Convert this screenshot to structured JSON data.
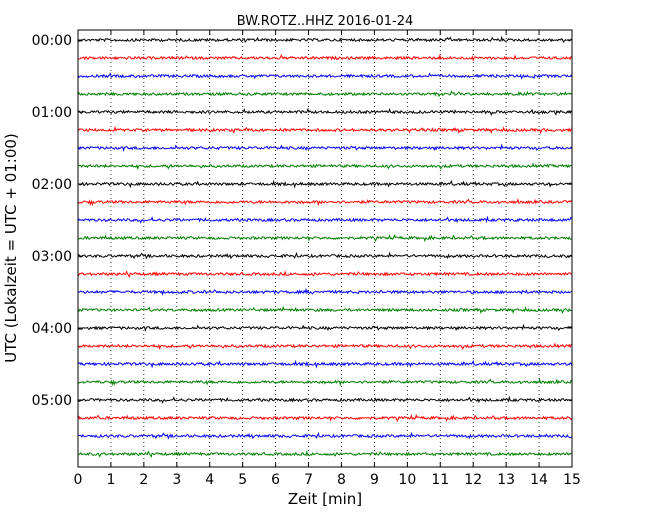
{
  "chart_data": {
    "type": "line",
    "title": "BW.ROTZ..HHZ 2016-01-24",
    "xlabel": "Zeit  [min]",
    "ylabel": "UTC (Lokalzeit = UTC + 01:00)",
    "xlim": [
      0,
      15
    ],
    "x_ticks": [
      "0",
      "1",
      "2",
      "3",
      "4",
      "5",
      "6",
      "7",
      "8",
      "9",
      "10",
      "11",
      "12",
      "13",
      "14",
      "15"
    ],
    "y_tick_labels": [
      "00:00",
      "01:00",
      "02:00",
      "03:00",
      "04:00",
      "05:00"
    ],
    "trace_colors": [
      "#000000",
      "#ff0000",
      "#0000ff",
      "#008000"
    ],
    "trace_count": 24,
    "minutes_per_trace": 15,
    "vertical_grid": "dotted",
    "legend": "none"
  }
}
